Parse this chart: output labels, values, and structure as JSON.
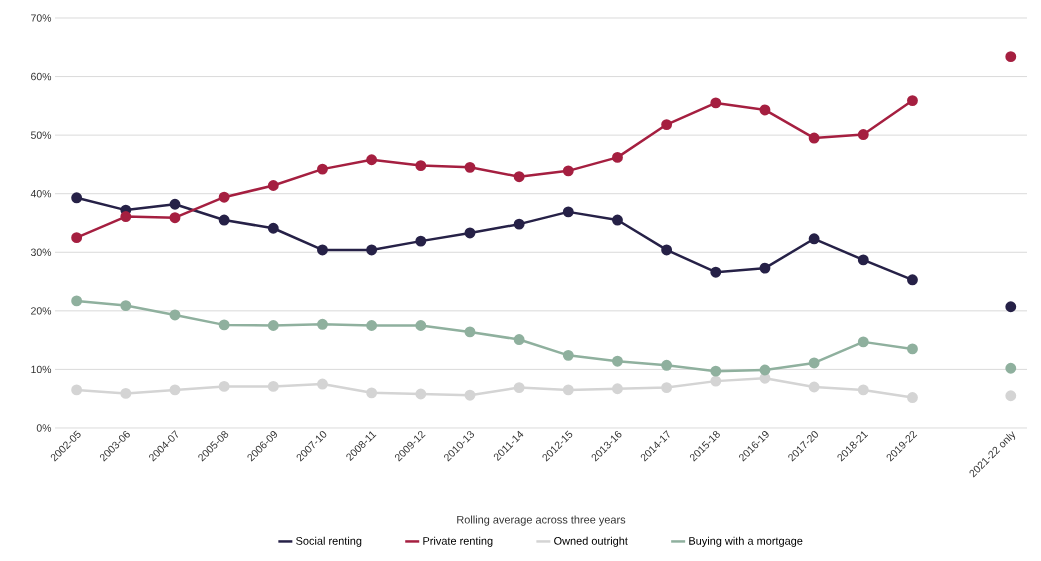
{
  "chart_data": {
    "type": "line",
    "xlabel": "Rolling average across three years",
    "categories": [
      "2002-05",
      "2003-06",
      "2004-07",
      "2005-08",
      "2006-09",
      "2007-10",
      "2008-11",
      "2009-12",
      "2010-13",
      "2011-14",
      "2012-15",
      "2013-16",
      "2014-17",
      "2015-18",
      "2016-19",
      "2017-20",
      "2018-21",
      "2019-22",
      null,
      "2021-22 only"
    ],
    "series": [
      {
        "name": "Social renting",
        "color": "#262147",
        "values": [
          39.3,
          37.2,
          38.2,
          35.5,
          34.1,
          30.4,
          30.4,
          31.9,
          33.3,
          34.8,
          36.9,
          35.5,
          30.4,
          26.6,
          27.3,
          32.3,
          28.7,
          25.3,
          null,
          20.7
        ]
      },
      {
        "name": "Private renting",
        "color": "#a51f40",
        "values": [
          32.5,
          36.1,
          35.9,
          39.4,
          41.4,
          44.2,
          45.8,
          44.8,
          44.5,
          42.9,
          43.9,
          46.2,
          51.8,
          55.5,
          54.3,
          49.5,
          50.1,
          55.9,
          null,
          63.4
        ]
      },
      {
        "name": "Owned outright",
        "color": "#d4d4d4",
        "values": [
          6.5,
          5.9,
          6.5,
          7.1,
          7.1,
          7.5,
          6.0,
          5.8,
          5.6,
          6.9,
          6.5,
          6.7,
          6.9,
          8.0,
          8.5,
          7.0,
          6.5,
          5.2,
          null,
          5.5
        ]
      },
      {
        "name": "Buying with a mortgage",
        "color": "#8fb09e",
        "values": [
          21.7,
          20.9,
          19.3,
          17.6,
          17.5,
          17.7,
          17.5,
          17.5,
          16.4,
          15.1,
          12.4,
          11.4,
          10.7,
          9.7,
          9.9,
          11.1,
          14.7,
          13.5,
          null,
          10.2
        ]
      }
    ],
    "ylim": [
      0,
      70
    ],
    "yticks": [
      {
        "value": 0,
        "label": "0%"
      },
      {
        "value": 10,
        "label": "10%"
      },
      {
        "value": 20,
        "label": "20%"
      },
      {
        "value": 30,
        "label": "30%"
      },
      {
        "value": 40,
        "label": "40%"
      },
      {
        "value": 50,
        "label": "50%"
      },
      {
        "value": 60,
        "label": "60%"
      },
      {
        "value": 70,
        "label": "70%"
      }
    ],
    "grid": "y",
    "legend": "bottom",
    "marker": "circle",
    "line_style": "solid"
  }
}
